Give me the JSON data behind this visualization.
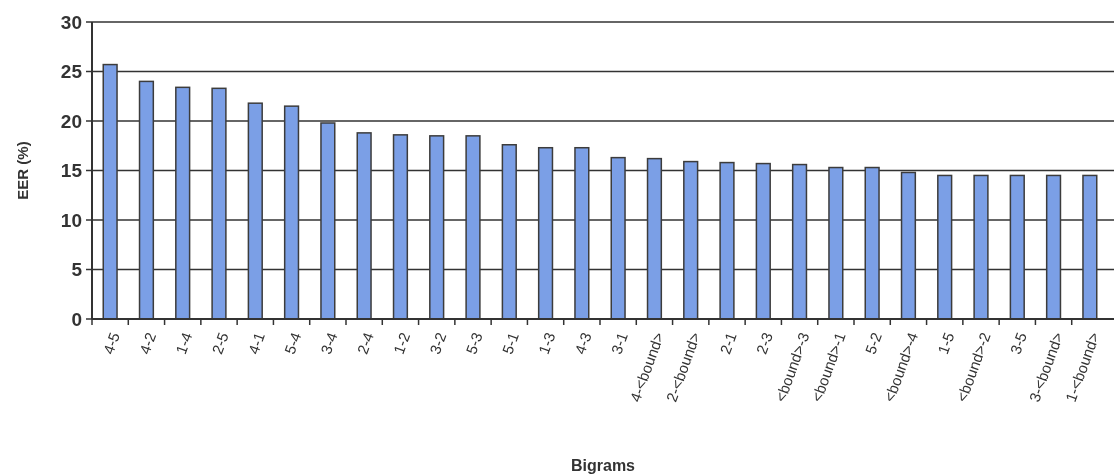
{
  "chart_data": {
    "type": "bar",
    "xlabel": "Bigrams",
    "ylabel": "EER (%)",
    "categories": [
      "4-5",
      "4-2",
      "1-4",
      "2-5",
      "4-1",
      "5-4",
      "3-4",
      "2-4",
      "1-2",
      "3-2",
      "5-3",
      "5-1",
      "1-3",
      "4-3",
      "3-1",
      "4-<bound>",
      "2-<bound>",
      "2-1",
      "2-3",
      "<bound>-3",
      "<bound>-1",
      "5-2",
      "<bound>-4",
      "1-5",
      "<bound>-2",
      "3-5",
      "3-<bound>",
      "1-<bound>"
    ],
    "values": [
      25.7,
      24.0,
      23.4,
      23.3,
      21.8,
      21.5,
      19.8,
      18.8,
      18.6,
      18.5,
      18.5,
      17.6,
      17.3,
      17.3,
      16.3,
      16.2,
      15.9,
      15.8,
      15.7,
      15.6,
      15.3,
      15.3,
      14.8,
      14.5,
      14.5,
      14.5,
      14.5,
      14.5
    ],
    "color": "#7b9fe6",
    "ylim": [
      0,
      30
    ],
    "yticks": [
      0,
      5,
      10,
      15,
      20,
      25,
      30
    ],
    "grid": "y"
  }
}
